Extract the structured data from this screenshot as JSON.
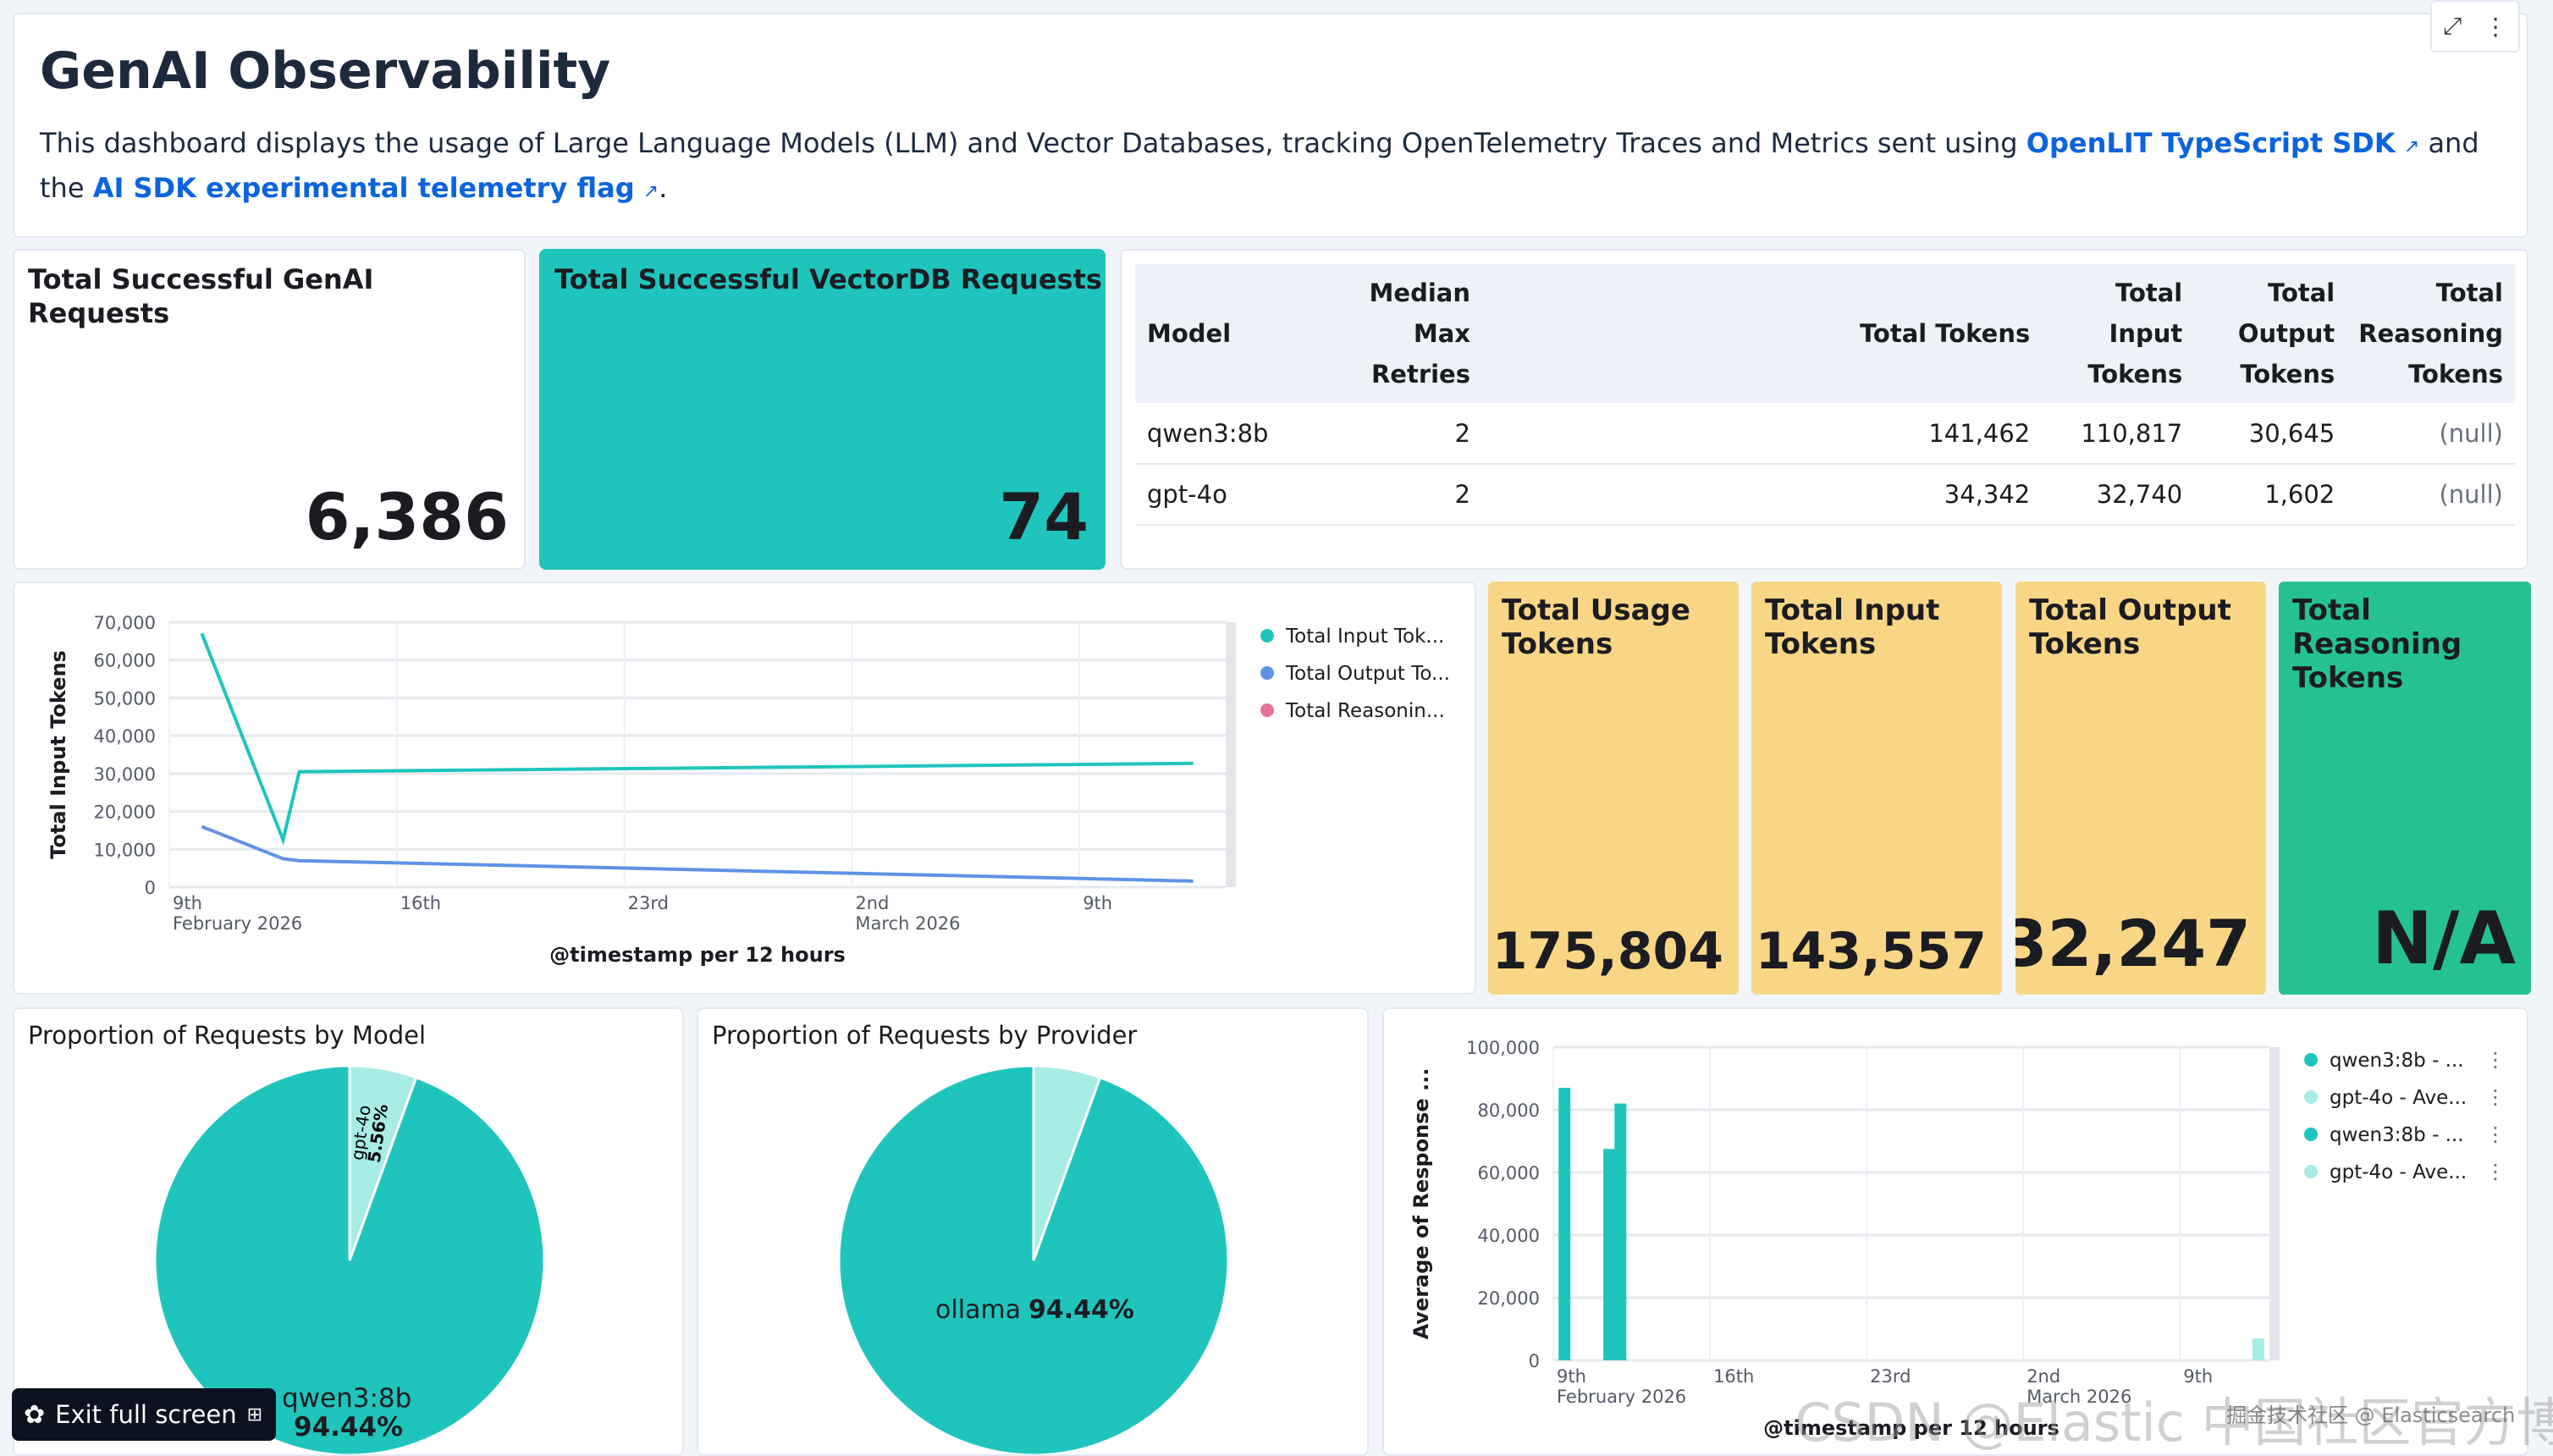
{
  "header": {
    "title": "GenAI Observability",
    "desc_before": "This dashboard displays the usage of Large Language Models (LLM) and Vector Databases, tracking OpenTelemetry Traces and Metrics sent using ",
    "link1": "OpenLIT TypeScript SDK",
    "desc_mid": " and the ",
    "link2": "AI SDK experimental telemetry flag",
    "desc_end": ".",
    "expand_icon": "expand-icon",
    "menu_icon": "kebab-menu-icon"
  },
  "metrics": {
    "genai": {
      "title": "Total Successful GenAI Requests",
      "value": "6,386"
    },
    "vectordb": {
      "title": "Total Successful VectorDB Requests",
      "value": "74"
    },
    "usage": {
      "title": "Total Usage Tokens",
      "value": "175,804"
    },
    "input": {
      "title": "Total Input Tokens",
      "value": "143,557"
    },
    "output": {
      "title": "Total Output Tokens",
      "value": "32,247"
    },
    "reasoning": {
      "title": "Total Reasoning Tokens",
      "value": "N/A"
    }
  },
  "colors": {
    "teal": "#1fc5bc",
    "light_teal": "#a8ece6",
    "yellow": "#f8d685",
    "green": "#25c193",
    "blue": "#6092e6",
    "pink": "#e7739a"
  },
  "table": {
    "headers": [
      "Model",
      "Median Max Retries",
      "Total Tokens",
      "Total Input Tokens",
      "Total Output Tokens",
      "Total Reasoning Tokens"
    ],
    "rows": [
      [
        "qwen3:8b",
        "2",
        "141,462",
        "110,817",
        "30,645",
        "(null)"
      ],
      [
        "gpt-4o",
        "2",
        "34,342",
        "32,740",
        "1,602",
        "(null)"
      ]
    ]
  },
  "chart_data": [
    {
      "type": "line",
      "ylabel": "Total Input Tokens",
      "xlabel": "@timestamp per 12 hours",
      "ylim": [
        0,
        70000
      ],
      "yticks": [
        "70,000",
        "60,000",
        "50,000",
        "40,000",
        "30,000",
        "20,000",
        "10,000",
        "0"
      ],
      "xticks": [
        {
          "date": "2026-02-09",
          "label": "9th",
          "sub": "February 2026"
        },
        {
          "date": "2026-02-16",
          "label": "16th",
          "sub": ""
        },
        {
          "date": "2026-02-23",
          "label": "23rd",
          "sub": ""
        },
        {
          "date": "2026-03-02",
          "label": "2nd",
          "sub": "March 2026"
        },
        {
          "date": "2026-03-09",
          "label": "9th",
          "sub": ""
        }
      ],
      "xlim": [
        "2026-02-09",
        "2026-03-13T12:00"
      ],
      "grid": true,
      "legend": "right",
      "series": [
        {
          "name": "Total Input Tok...",
          "color": "#1fc5bc",
          "points": [
            [
              "2026-02-10",
              67000
            ],
            [
              "2026-02-12T12:00",
              12500
            ],
            [
              "2026-02-13",
              30500
            ],
            [
              "2026-03-12T12:00",
              32700
            ]
          ]
        },
        {
          "name": "Total Output To...",
          "color": "#6092e6",
          "points": [
            [
              "2026-02-10",
              16000
            ],
            [
              "2026-02-12T12:00",
              7500
            ],
            [
              "2026-02-13",
              7000
            ],
            [
              "2026-03-12T12:00",
              1600
            ]
          ]
        },
        {
          "name": "Total Reasonin...",
          "color": "#e7739a",
          "points": []
        }
      ]
    },
    {
      "type": "pie",
      "title": "Proportion of Requests by Model",
      "slices": [
        {
          "label": "gpt-4o",
          "value": 5.56,
          "pct": "5.56%",
          "color": "#a8ece6"
        },
        {
          "label": "qwen3:8b",
          "value": 94.44,
          "pct": "94.44%",
          "color": "#1fc5bc"
        }
      ]
    },
    {
      "type": "pie",
      "title": "Proportion of Requests by Provider",
      "slices": [
        {
          "label": "",
          "value": 5.56,
          "pct": "",
          "color": "#a8ece6"
        },
        {
          "label": "ollama",
          "value": 94.44,
          "pct": "94.44%",
          "color": "#1fc5bc"
        }
      ]
    },
    {
      "type": "bar",
      "ylabel": "Average of Response ...",
      "xlabel": "@timestamp per 12 hours",
      "ylim": [
        0,
        100000
      ],
      "yticks": [
        "100,000",
        "80,000",
        "60,000",
        "40,000",
        "20,000",
        "0"
      ],
      "xticks": [
        {
          "date": "2026-02-09",
          "label": "9th",
          "sub": "February 2026"
        },
        {
          "date": "2026-02-16",
          "label": "16th",
          "sub": ""
        },
        {
          "date": "2026-02-23",
          "label": "23rd",
          "sub": ""
        },
        {
          "date": "2026-03-02",
          "label": "2nd",
          "sub": "March 2026"
        },
        {
          "date": "2026-03-09",
          "label": "9th",
          "sub": ""
        }
      ],
      "xlim": [
        "2026-02-09",
        "2026-03-13"
      ],
      "grid": true,
      "legend": "right",
      "legend_items": [
        {
          "name": "qwen3:8b - ...",
          "color": "#1fc5bc"
        },
        {
          "name": "gpt-4o - Ave...",
          "color": "#a8ece6"
        },
        {
          "name": "qwen3:8b - ...",
          "color": "#1fc5bc"
        },
        {
          "name": "gpt-4o - Ave...",
          "color": "#a8ece6"
        }
      ],
      "bars": [
        {
          "date": "2026-02-09T12:00",
          "value": 87000,
          "color": "#1fc5bc"
        },
        {
          "date": "2026-02-11T12:00",
          "value": 67500,
          "color": "#1fc5bc"
        },
        {
          "date": "2026-02-12",
          "value": 82000,
          "color": "#1fc5bc"
        },
        {
          "date": "2026-03-12T12:00",
          "value": 7000,
          "color": "#a8ece6"
        }
      ]
    }
  ],
  "exit_fullscreen": "Exit full screen",
  "watermark": "CSDN @Elastic 中国社区官方博客",
  "watermark2": "掘金技术社区 @ Elasticsearch"
}
